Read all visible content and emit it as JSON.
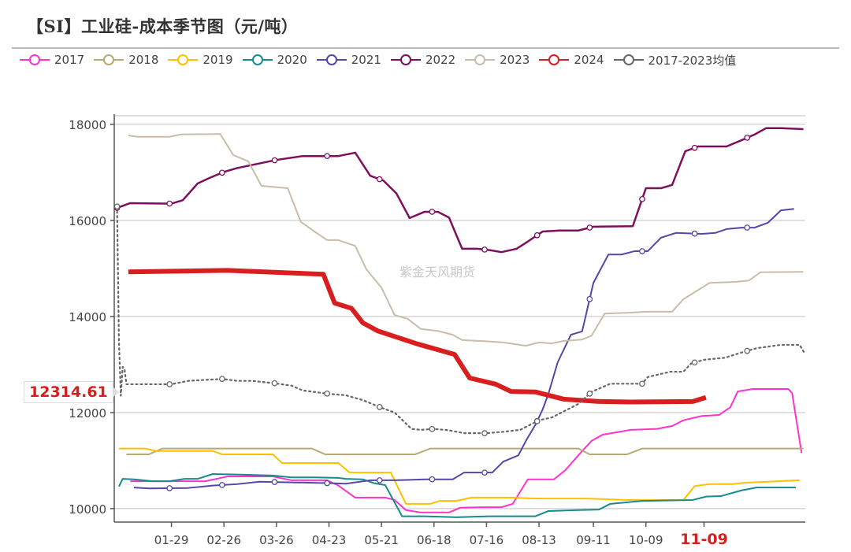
{
  "title": "【SI】工业硅-成本季节图（元/吨）",
  "watermark": "紫金天风期货",
  "tooltip_value": "12314.61",
  "chart_data": {
    "type": "line",
    "title": "【SI】工业硅-成本季节图（元/吨）",
    "xlabel": "",
    "ylabel": "",
    "x_unit": "day of year (0 = Jan 1)",
    "xlim": [
      -2.5,
      366
    ],
    "ylim": [
      9720,
      18130
    ],
    "yticks": [
      10000,
      12000,
      14000,
      16000,
      18000
    ],
    "ytick_labels": [
      "10000",
      "12000",
      "14000",
      "16000",
      "18000"
    ],
    "xticks": [
      28,
      56,
      84,
      112,
      140,
      168,
      196,
      224,
      253,
      281,
      312
    ],
    "xtick_labels": [
      "01-29",
      "02-26",
      "03-26",
      "04-23",
      "05-21",
      "06-18",
      "07-16",
      "08-13",
      "09-11",
      "10-09",
      "11-09"
    ],
    "highlight_xtick": "11-09",
    "legend_position": "top",
    "grid": true,
    "marker_days": [
      -1,
      27,
      55,
      83,
      111,
      139,
      167,
      195,
      223,
      251,
      279,
      307,
      335
    ],
    "series": [
      {
        "name": "2017",
        "color": "#ff33cc",
        "width": 2,
        "markers": false,
        "points": [
          [
            6,
            10570
          ],
          [
            46,
            10570
          ],
          [
            58,
            10670
          ],
          [
            82,
            10670
          ],
          [
            92,
            10590
          ],
          [
            111,
            10590
          ],
          [
            117,
            10480
          ],
          [
            126,
            10230
          ],
          [
            142,
            10230
          ],
          [
            147,
            10180
          ],
          [
            153,
            9970
          ],
          [
            161,
            9920
          ],
          [
            176,
            9920
          ],
          [
            182,
            10020
          ],
          [
            193,
            10030
          ],
          [
            204,
            10030
          ],
          [
            210,
            10100
          ],
          [
            218,
            10610
          ],
          [
            232,
            10610
          ],
          [
            238,
            10800
          ],
          [
            245,
            11110
          ],
          [
            252,
            11410
          ],
          [
            258,
            11540
          ],
          [
            273,
            11640
          ],
          [
            287,
            11660
          ],
          [
            295,
            11720
          ],
          [
            301,
            11840
          ],
          [
            311,
            11930
          ],
          [
            320,
            11950
          ],
          [
            326,
            12110
          ],
          [
            330,
            12440
          ],
          [
            338,
            12490
          ],
          [
            357,
            12490
          ],
          [
            359,
            12400
          ],
          [
            364,
            11160
          ]
        ]
      },
      {
        "name": "2018",
        "color": "#b8ab72",
        "width": 2,
        "markers": false,
        "points": [
          [
            4,
            11130
          ],
          [
            16,
            11130
          ],
          [
            23,
            11250
          ],
          [
            103,
            11250
          ],
          [
            110,
            11130
          ],
          [
            158,
            11130
          ],
          [
            166,
            11250
          ],
          [
            245,
            11250
          ],
          [
            251,
            11130
          ],
          [
            271,
            11130
          ],
          [
            279,
            11250
          ],
          [
            365,
            11250
          ]
        ]
      },
      {
        "name": "2019",
        "color": "#ffc000",
        "width": 2,
        "markers": false,
        "points": [
          [
            0,
            11250
          ],
          [
            14,
            11250
          ],
          [
            20,
            11200
          ],
          [
            50,
            11200
          ],
          [
            55,
            11130
          ],
          [
            82,
            11130
          ],
          [
            87,
            10950
          ],
          [
            117,
            10950
          ],
          [
            123,
            10750
          ],
          [
            145,
            10750
          ],
          [
            153,
            10100
          ],
          [
            166,
            10100
          ],
          [
            171,
            10160
          ],
          [
            180,
            10160
          ],
          [
            188,
            10230
          ],
          [
            210,
            10230
          ],
          [
            222,
            10210
          ],
          [
            249,
            10210
          ],
          [
            271,
            10180
          ],
          [
            301,
            10180
          ],
          [
            307,
            10470
          ],
          [
            315,
            10510
          ],
          [
            327,
            10510
          ],
          [
            334,
            10540
          ],
          [
            346,
            10560
          ],
          [
            363,
            10590
          ]
        ]
      },
      {
        "name": "2020",
        "color": "#178a8c",
        "width": 2,
        "markers": false,
        "points": [
          [
            0,
            10460
          ],
          [
            2,
            10620
          ],
          [
            8,
            10610
          ],
          [
            18,
            10570
          ],
          [
            27,
            10570
          ],
          [
            35,
            10620
          ],
          [
            42,
            10620
          ],
          [
            50,
            10720
          ],
          [
            63,
            10710
          ],
          [
            82,
            10690
          ],
          [
            92,
            10650
          ],
          [
            105,
            10650
          ],
          [
            117,
            10640
          ],
          [
            121,
            10620
          ],
          [
            130,
            10610
          ],
          [
            136,
            10530
          ],
          [
            142,
            10490
          ],
          [
            151,
            9840
          ],
          [
            163,
            9840
          ],
          [
            180,
            9820
          ],
          [
            197,
            9840
          ],
          [
            222,
            9840
          ],
          [
            229,
            9950
          ],
          [
            245,
            9970
          ],
          [
            256,
            9980
          ],
          [
            262,
            10100
          ],
          [
            279,
            10160
          ],
          [
            306,
            10180
          ],
          [
            313,
            10250
          ],
          [
            321,
            10260
          ],
          [
            332,
            10380
          ],
          [
            340,
            10440
          ],
          [
            361,
            10440
          ]
        ]
      },
      {
        "name": "2021",
        "color": "#5546a8",
        "width": 2,
        "markers": true,
        "points": [
          [
            8,
            10440
          ],
          [
            16,
            10420
          ],
          [
            37,
            10430
          ],
          [
            50,
            10480
          ],
          [
            63,
            10510
          ],
          [
            75,
            10560
          ],
          [
            113,
            10530
          ],
          [
            121,
            10520
          ],
          [
            134,
            10590
          ],
          [
            147,
            10590
          ],
          [
            163,
            10610
          ],
          [
            178,
            10610
          ],
          [
            184,
            10750
          ],
          [
            199,
            10750
          ],
          [
            205,
            10980
          ],
          [
            213,
            11110
          ],
          [
            217,
            11410
          ],
          [
            222,
            11740
          ],
          [
            226,
            12070
          ],
          [
            229,
            12390
          ],
          [
            234,
            13050
          ],
          [
            241,
            13620
          ],
          [
            247,
            13690
          ],
          [
            253,
            14700
          ],
          [
            261,
            15290
          ],
          [
            268,
            15290
          ],
          [
            275,
            15360
          ],
          [
            282,
            15360
          ],
          [
            289,
            15640
          ],
          [
            297,
            15740
          ],
          [
            311,
            15720
          ],
          [
            318,
            15740
          ],
          [
            324,
            15820
          ],
          [
            332,
            15850
          ],
          [
            339,
            15850
          ],
          [
            346,
            15950
          ],
          [
            353,
            16210
          ],
          [
            360,
            16240
          ]
        ]
      },
      {
        "name": "2022",
        "color": "#7f0f5e",
        "width": 2.5,
        "markers": true,
        "points": [
          [
            -1,
            16260
          ],
          [
            6,
            16360
          ],
          [
            28,
            16350
          ],
          [
            34,
            16420
          ],
          [
            42,
            16770
          ],
          [
            48,
            16880
          ],
          [
            56,
            17010
          ],
          [
            63,
            17090
          ],
          [
            84,
            17260
          ],
          [
            98,
            17340
          ],
          [
            117,
            17340
          ],
          [
            126,
            17410
          ],
          [
            134,
            16930
          ],
          [
            141,
            16830
          ],
          [
            148,
            16560
          ],
          [
            155,
            16050
          ],
          [
            163,
            16180
          ],
          [
            170,
            16180
          ],
          [
            176,
            16060
          ],
          [
            183,
            15410
          ],
          [
            191,
            15410
          ],
          [
            198,
            15380
          ],
          [
            204,
            15340
          ],
          [
            212,
            15410
          ],
          [
            218,
            15560
          ],
          [
            226,
            15770
          ],
          [
            235,
            15790
          ],
          [
            245,
            15790
          ],
          [
            253,
            15870
          ],
          [
            274,
            15880
          ],
          [
            281,
            16670
          ],
          [
            289,
            16670
          ],
          [
            295,
            16740
          ],
          [
            302,
            17440
          ],
          [
            309,
            17540
          ],
          [
            324,
            17540
          ],
          [
            332,
            17670
          ],
          [
            339,
            17790
          ],
          [
            345,
            17920
          ],
          [
            353,
            17920
          ],
          [
            365,
            17900
          ]
        ]
      },
      {
        "name": "2023",
        "color": "#c9bdaa",
        "width": 2,
        "markers": false,
        "points": [
          [
            5,
            17770
          ],
          [
            10,
            17740
          ],
          [
            27,
            17740
          ],
          [
            33,
            17790
          ],
          [
            54,
            17800
          ],
          [
            61,
            17360
          ],
          [
            69,
            17230
          ],
          [
            76,
            16720
          ],
          [
            90,
            16670
          ],
          [
            97,
            15970
          ],
          [
            105,
            15750
          ],
          [
            111,
            15590
          ],
          [
            117,
            15590
          ],
          [
            126,
            15470
          ],
          [
            132,
            14980
          ],
          [
            140,
            14600
          ],
          [
            147,
            14030
          ],
          [
            154,
            13950
          ],
          [
            161,
            13740
          ],
          [
            170,
            13700
          ],
          [
            178,
            13620
          ],
          [
            183,
            13510
          ],
          [
            193,
            13490
          ],
          [
            205,
            13460
          ],
          [
            217,
            13390
          ],
          [
            224,
            13460
          ],
          [
            231,
            13440
          ],
          [
            237,
            13490
          ],
          [
            247,
            13520
          ],
          [
            252,
            13600
          ],
          [
            259,
            14060
          ],
          [
            273,
            14080
          ],
          [
            281,
            14100
          ],
          [
            295,
            14100
          ],
          [
            301,
            14360
          ],
          [
            315,
            14700
          ],
          [
            329,
            14720
          ],
          [
            336,
            14750
          ],
          [
            342,
            14920
          ],
          [
            365,
            14930
          ]
        ]
      },
      {
        "name": "2024",
        "color": "#d81e1e",
        "width": 6,
        "markers": false,
        "points": [
          [
            5,
            14930
          ],
          [
            58,
            14960
          ],
          [
            109,
            14880
          ],
          [
            115,
            14280
          ],
          [
            124,
            14170
          ],
          [
            130,
            13870
          ],
          [
            138,
            13700
          ],
          [
            159,
            13430
          ],
          [
            179,
            13210
          ],
          [
            187,
            12720
          ],
          [
            201,
            12590
          ],
          [
            209,
            12440
          ],
          [
            222,
            12430
          ],
          [
            237,
            12280
          ],
          [
            256,
            12230
          ],
          [
            273,
            12220
          ],
          [
            306,
            12230
          ],
          [
            313,
            12314.61
          ]
        ]
      },
      {
        "name": "2017-2023均值",
        "color": "#666666",
        "width": 2.2,
        "dashed": true,
        "markers": true,
        "points": [
          [
            -1,
            16290
          ],
          [
            0,
            13500
          ],
          [
            1,
            12350
          ],
          [
            2,
            12950
          ],
          [
            3,
            12900
          ],
          [
            4,
            12590
          ],
          [
            28,
            12590
          ],
          [
            37,
            12660
          ],
          [
            55,
            12700
          ],
          [
            63,
            12660
          ],
          [
            71,
            12660
          ],
          [
            83,
            12610
          ],
          [
            92,
            12560
          ],
          [
            98,
            12460
          ],
          [
            112,
            12390
          ],
          [
            121,
            12360
          ],
          [
            130,
            12260
          ],
          [
            140,
            12100
          ],
          [
            147,
            12000
          ],
          [
            156,
            11660
          ],
          [
            161,
            11640
          ],
          [
            168,
            11660
          ],
          [
            176,
            11630
          ],
          [
            184,
            11570
          ],
          [
            196,
            11570
          ],
          [
            205,
            11600
          ],
          [
            214,
            11640
          ],
          [
            224,
            11840
          ],
          [
            231,
            11900
          ],
          [
            245,
            12180
          ],
          [
            252,
            12430
          ],
          [
            262,
            12600
          ],
          [
            279,
            12600
          ],
          [
            282,
            12740
          ],
          [
            294,
            12850
          ],
          [
            301,
            12850
          ],
          [
            305,
            13020
          ],
          [
            312,
            13100
          ],
          [
            323,
            13140
          ],
          [
            332,
            13250
          ],
          [
            340,
            13340
          ],
          [
            353,
            13410
          ],
          [
            363,
            13410
          ],
          [
            366,
            13210
          ]
        ]
      }
    ]
  }
}
